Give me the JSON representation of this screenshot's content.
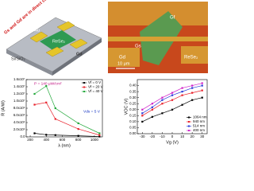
{
  "schematic": {
    "note": "Gs and Gd are in direct contact with ReSe₂",
    "electrode": "Cr/Au",
    "flake": "ReSe₂",
    "substrate": "Si/SiO₂",
    "drain": "Gd"
  },
  "micrograph": {
    "gate_f": "Gf",
    "gate_s": "Gs",
    "gate_d": "Gd",
    "flake": "ReSe₂",
    "scale": "10 μm"
  },
  "chart_data": [
    {
      "type": "line",
      "ylabel": "R (A/W)",
      "xlabel": "λ (nm)",
      "xlim": [
        150,
        1100
      ],
      "xticks": [
        200,
        400,
        600,
        800,
        1000
      ],
      "ylim": [
        0,
        16000000
      ],
      "yticks": [
        {
          "value": 0,
          "label": "0.0"
        },
        {
          "value": 2000000,
          "label": "2.0x10⁶"
        },
        {
          "value": 4000000,
          "label": "4.0x10⁶"
        },
        {
          "value": 6000000,
          "label": "6.0x10⁶"
        },
        {
          "value": 8000000,
          "label": "8.0x10⁶"
        },
        {
          "value": 10000000,
          "label": "1.0x10⁷"
        },
        {
          "value": 12000000,
          "label": "1.2x10⁷"
        },
        {
          "value": 14000000,
          "label": "1.4x10⁷"
        },
        {
          "value": 16000000,
          "label": "1.6x10⁷"
        }
      ],
      "x": [
        254,
        400,
        514,
        800,
        1064
      ],
      "series": [
        {
          "name": "Vf = 0 V",
          "color": "#000000",
          "values": [
            1000000,
            600000,
            500000,
            300000,
            100000
          ]
        },
        {
          "name": "Vf = 20 V",
          "color": "#e8202a",
          "values": [
            9000000,
            9600000,
            5000000,
            2200000,
            500000
          ]
        },
        {
          "name": "Vf = 40 V",
          "color": "#22a83a",
          "values": [
            12000000,
            14200000,
            8000000,
            3800000,
            1000000
          ]
        }
      ],
      "annotations": [
        "P = 140 μW/cm²",
        "Vds = 5 V"
      ],
      "legend": "upper right"
    },
    {
      "type": "line",
      "ylabel": "VOC (V)",
      "xlabel": "Vg (V)",
      "xlim": [
        -35,
        35
      ],
      "xticks": [
        -30,
        -20,
        -10,
        0,
        10,
        20,
        30
      ],
      "ylim": [
        0,
        0.45
      ],
      "yticks": [
        {
          "value": 0,
          "label": "0.00"
        },
        {
          "value": 0.05,
          "label": "0.05"
        },
        {
          "value": 0.1,
          "label": "0.10"
        },
        {
          "value": 0.15,
          "label": "0.15"
        },
        {
          "value": 0.2,
          "label": "0.20"
        },
        {
          "value": 0.25,
          "label": "0.25"
        },
        {
          "value": 0.3,
          "label": "0.30"
        },
        {
          "value": 0.35,
          "label": "0.35"
        },
        {
          "value": 0.4,
          "label": "0.40"
        }
      ],
      "x": [
        -30,
        -20,
        -10,
        0,
        10,
        20,
        30
      ],
      "series": [
        {
          "name": "1064 nm",
          "color": "#000000",
          "values": [
            0.1,
            0.14,
            0.17,
            0.2,
            0.24,
            0.28,
            0.3
          ]
        },
        {
          "name": "940 nm",
          "color": "#e8202a",
          "values": [
            0.15,
            0.2,
            0.25,
            0.28,
            0.32,
            0.34,
            0.36
          ]
        },
        {
          "name": "514 nm",
          "color": "#2a3ad8",
          "values": [
            0.17,
            0.22,
            0.28,
            0.32,
            0.35,
            0.38,
            0.4
          ]
        },
        {
          "name": "400 nm",
          "color": "#d020c8",
          "values": [
            0.2,
            0.25,
            0.3,
            0.34,
            0.38,
            0.4,
            0.42
          ]
        }
      ],
      "annotations": [],
      "legend": "lower right"
    }
  ]
}
